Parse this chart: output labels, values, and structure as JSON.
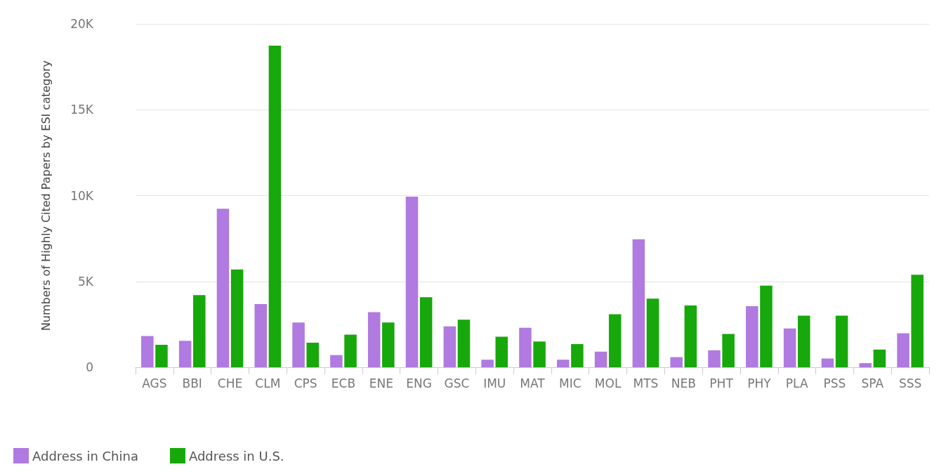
{
  "chart_data": {
    "type": "bar",
    "ylabel": "Numbers of Highly Cited Papers by ESI category",
    "categories": [
      "AGS",
      "BBI",
      "CHE",
      "CLM",
      "CPS",
      "ECB",
      "ENE",
      "ENG",
      "GSC",
      "IMU",
      "MAT",
      "MIC",
      "MOL",
      "MTS",
      "NEB",
      "PHT",
      "PHY",
      "PLA",
      "PSS",
      "SPA",
      "SSS"
    ],
    "series": [
      {
        "name": "Address in China",
        "color": "#b07ae0",
        "values": [
          1820,
          1540,
          9230,
          3680,
          2610,
          710,
          3210,
          9940,
          2380,
          440,
          2300,
          440,
          910,
          7450,
          590,
          990,
          3560,
          2260,
          510,
          240,
          1980
        ]
      },
      {
        "name": "Address in U.S.",
        "color": "#17a80b",
        "values": [
          1310,
          4200,
          5700,
          18730,
          1430,
          1900,
          2610,
          4080,
          2770,
          1780,
          1500,
          1350,
          3090,
          4000,
          3600,
          1940,
          4750,
          3010,
          3010,
          1030,
          5390
        ]
      }
    ],
    "ylim": [
      0,
      20000
    ],
    "yticks": [
      0,
      {
        "value": 5000,
        "label": "5K"
      },
      {
        "value": 10000,
        "label": "10K"
      },
      {
        "value": 15000,
        "label": "15K"
      },
      {
        "value": 20000,
        "label": "20K"
      }
    ],
    "grid": "y",
    "legend": "bottom left"
  }
}
